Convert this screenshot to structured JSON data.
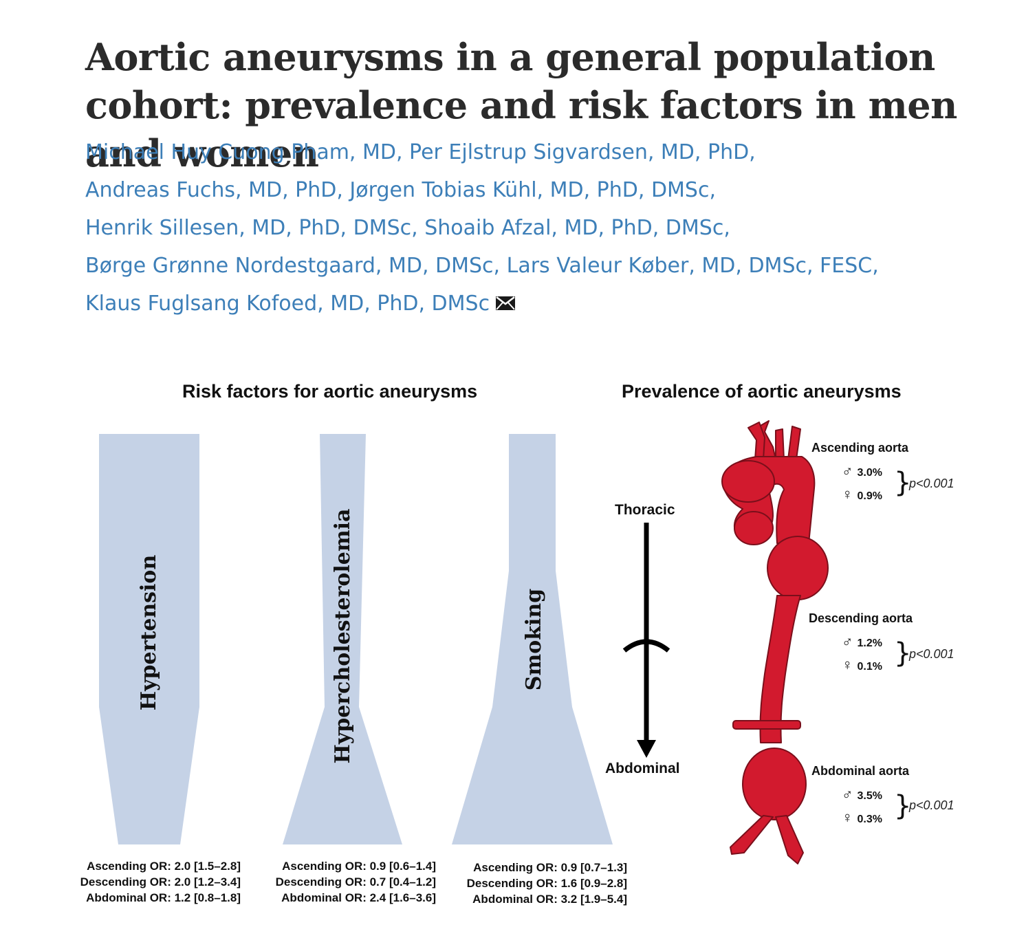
{
  "title": "Aortic aneurysms in a general population cohort: prevalence and risk factors in men and women",
  "authors": [
    "Michael Huy Cuong Pham, MD, Per Ejlstrup Sigvardsen, MD, PhD,",
    "Andreas Fuchs, MD, PhD, Jørgen Tobias Kühl, MD, PhD, DMSc,",
    "Henrik Sillesen, MD, PhD, DMSc, Shoaib Afzal, MD, PhD, DMSc,",
    "Børge Grønne Nordestgaard, MD, DMSc, Lars Valeur Køber, MD, DMSc, FESC,",
    "Klaus Fuglsang Kofoed, MD, PhD, DMSc"
  ],
  "colors": {
    "author_link": "#3d7fb8",
    "band_fill": "#c5d2e6",
    "aorta_red": "#d21a2e"
  },
  "icons": {
    "contact": "envelope-icon"
  },
  "risk_factors": {
    "title": "Risk factors for aortic aneurysms",
    "factors": [
      {
        "name": "Hypertension",
        "or": [
          {
            "segment": "Ascending",
            "or": 2.0,
            "ci": [
              1.5,
              2.8
            ],
            "text": "Ascending OR: 2.0 [1.5–2.8]"
          },
          {
            "segment": "Descending",
            "or": 2.0,
            "ci": [
              1.2,
              3.4
            ],
            "text": "Descending OR: 2.0 [1.2–3.4]"
          },
          {
            "segment": "Abdominal",
            "or": 1.2,
            "ci": [
              0.8,
              1.8
            ],
            "text": "Abdominal OR: 1.2 [0.8–1.8]"
          }
        ]
      },
      {
        "name": "Hypercholesterolemia",
        "or": [
          {
            "segment": "Ascending",
            "or": 0.9,
            "ci": [
              0.6,
              1.4
            ],
            "text": "Ascending OR: 0.9 [0.6–1.4]"
          },
          {
            "segment": "Descending",
            "or": 0.7,
            "ci": [
              0.4,
              1.2
            ],
            "text": "Descending OR: 0.7 [0.4–1.2]"
          },
          {
            "segment": "Abdominal",
            "or": 2.4,
            "ci": [
              1.6,
              3.6
            ],
            "text": "Abdominal OR: 2.4 [1.6–3.6]"
          }
        ]
      },
      {
        "name": "Smoking",
        "or": [
          {
            "segment": "Ascending",
            "or": 0.9,
            "ci": [
              0.7,
              1.3
            ],
            "text": "Ascending OR: 0.9 [0.7–1.3]"
          },
          {
            "segment": "Descending",
            "or": 1.6,
            "ci": [
              0.9,
              2.8
            ],
            "text": "Descending OR: 1.6 [0.9–2.8]"
          },
          {
            "segment": "Abdominal",
            "or": 3.2,
            "ci": [
              1.9,
              5.4
            ],
            "text": "Abdominal OR: 3.2 [1.9–5.4]"
          }
        ]
      }
    ]
  },
  "axis": {
    "top": "Thoracic",
    "bottom": "Abdominal"
  },
  "prevalence": {
    "title": "Prevalence of aortic aneurysms",
    "male_symbol": "♂",
    "female_symbol": "♀",
    "segments": [
      {
        "name": "Ascending aorta",
        "male": "3.0%",
        "female": "0.9%",
        "p": "p<0.001"
      },
      {
        "name": "Descending aorta",
        "male": "1.2%",
        "female": "0.1%",
        "p": "p<0.001"
      },
      {
        "name": "Abdominal aorta",
        "male": "3.5%",
        "female": "0.3%",
        "p": "p<0.001"
      }
    ]
  }
}
